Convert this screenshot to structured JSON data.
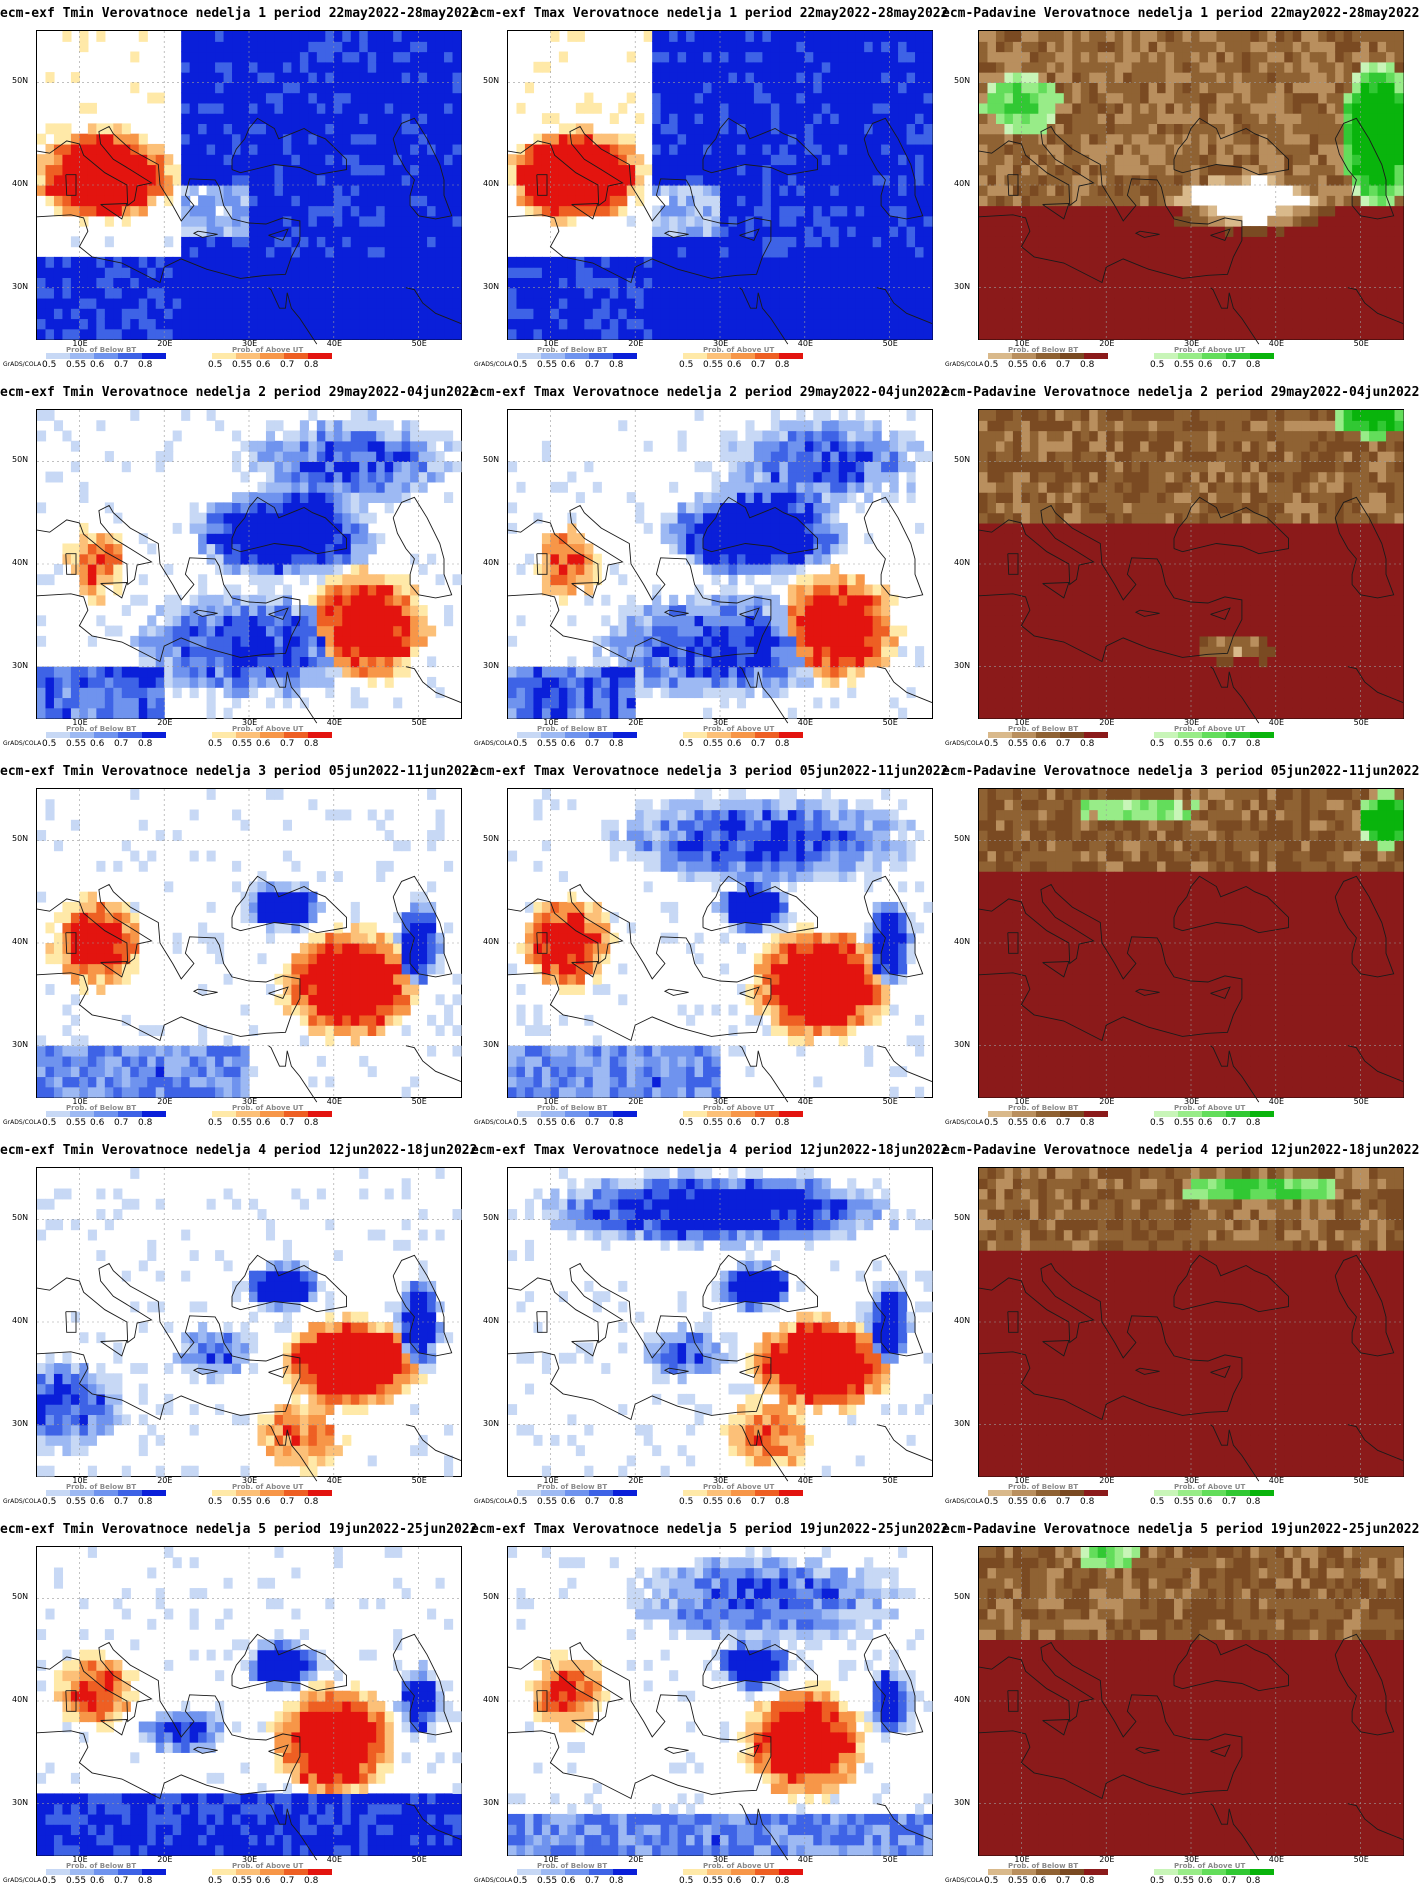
{
  "software_label": "GrADS/COLA",
  "lat_ticks": [
    "50N",
    "40N",
    "30N"
  ],
  "lon_ticks": [
    "10E",
    "20E",
    "30E",
    "40E",
    "50E"
  ],
  "legend_levels": [
    "0.5",
    "0.55",
    "0.6",
    "0.7",
    "0.8"
  ],
  "colorbars": {
    "below_bt": {
      "title": "Prob. of Below BT",
      "colors": [
        "#c7d8f5",
        "#9db9f3",
        "#6f93ee",
        "#3e63e6",
        "#0a1fd9"
      ]
    },
    "above_ut": {
      "title": "Prob. of Above UT",
      "colors": [
        "#ffe9a8",
        "#fcc078",
        "#f79648",
        "#ee5f23",
        "#e3140f"
      ]
    },
    "below_precip": {
      "title": "Prob. of Below BT",
      "colors": [
        "#d9b98b",
        "#b98f5e",
        "#8f6233",
        "#7a4a22",
        "#8b1a1a"
      ]
    },
    "above_precip": {
      "title": "Prob. of Above UT",
      "colors": [
        "#c8f5b8",
        "#98ec88",
        "#63dd5b",
        "#31c833",
        "#09b40c"
      ]
    }
  },
  "panels": [
    {
      "title": "ecm-exf Tmin Verovatnoce nedelja 1 period 22may2022-28may2022",
      "variable": "tmin",
      "week": 1
    },
    {
      "title": "ecm-exf Tmax Verovatnoce nedelja 1 period 22may2022-28may2022",
      "variable": "tmax",
      "week": 1
    },
    {
      "title": "ecm-Padavine Verovatnoce nedelja 1 period 22may2022-28may2022",
      "variable": "precip",
      "week": 1
    },
    {
      "title": "ecm-exf Tmin Verovatnoce nedelja 2 period 29may2022-04jun2022",
      "variable": "tmin",
      "week": 2
    },
    {
      "title": "ecm-exf Tmax Verovatnoce nedelja 2 period 29may2022-04jun2022",
      "variable": "tmax",
      "week": 2
    },
    {
      "title": "ecm-Padavine Verovatnoce nedelja 2 period 29may2022-04jun2022",
      "variable": "precip",
      "week": 2
    },
    {
      "title": "ecm-exf Tmin Verovatnoce nedelja 3 period 05jun2022-11jun2022",
      "variable": "tmin",
      "week": 3
    },
    {
      "title": "ecm-exf Tmax Verovatnoce nedelja 3 period 05jun2022-11jun2022",
      "variable": "tmax",
      "week": 3
    },
    {
      "title": "ecm-Padavine Verovatnoce nedelja 3 period 05jun2022-11jun2022",
      "variable": "precip",
      "week": 3
    },
    {
      "title": "ecm-exf Tmin Verovatnoce nedelja 4 period 12jun2022-18jun2022",
      "variable": "tmin",
      "week": 4
    },
    {
      "title": "ecm-exf Tmax Verovatnoce nedelja 4 period 12jun2022-18jun2022",
      "variable": "tmax",
      "week": 4
    },
    {
      "title": "ecm-Padavine Verovatnoce nedelja 4 period 12jun2022-18jun2022",
      "variable": "precip",
      "week": 4
    },
    {
      "title": "ecm-exf Tmin Verovatnoce nedelja 5 period 19jun2022-25jun2022",
      "variable": "tmin",
      "week": 5
    },
    {
      "title": "ecm-exf Tmax Verovatnoce nedelja 5 period 19jun2022-25jun2022",
      "variable": "tmax",
      "week": 5
    },
    {
      "title": "ecm-Padavine Verovatnoce nedelja 5 period 19jun2022-25jun2022",
      "variable": "precip",
      "week": 5
    }
  ]
}
